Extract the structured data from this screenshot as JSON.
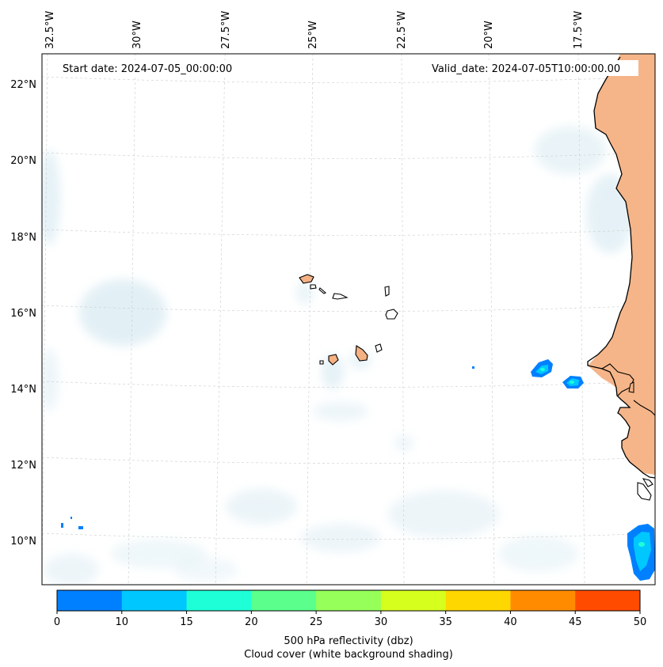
{
  "header": {
    "start_label": "Start date: 2024-07-05_00:00:00",
    "valid_label": "Valid_date: 2024-07-05T10:00:00.00"
  },
  "longitude_labels": [
    "32.5°W",
    "30°W",
    "27.5°W",
    "25°W",
    "22.5°W",
    "20°W",
    "17.5°W"
  ],
  "latitude_labels": [
    "22°N",
    "20°N",
    "18°N",
    "16°N",
    "14°N",
    "12°N",
    "10°N"
  ],
  "colorbar": {
    "ticks": [
      "0",
      "10",
      "15",
      "20",
      "25",
      "30",
      "35",
      "40",
      "45",
      "50"
    ],
    "colors": [
      "#0080ff",
      "#00c8ff",
      "#1effd7",
      "#5aff8c",
      "#96ff5a",
      "#d7ff1e",
      "#ffd700",
      "#ff8c00",
      "#ff4b00"
    ],
    "label_line1": "500 hPa reflectivity (dbz)",
    "label_line2": "Cloud cover (white background shading)"
  },
  "colors": {
    "land": "#f4b183",
    "cloud": "#cfe6ef",
    "coast": "#000000",
    "grid": "#cccccc"
  }
}
